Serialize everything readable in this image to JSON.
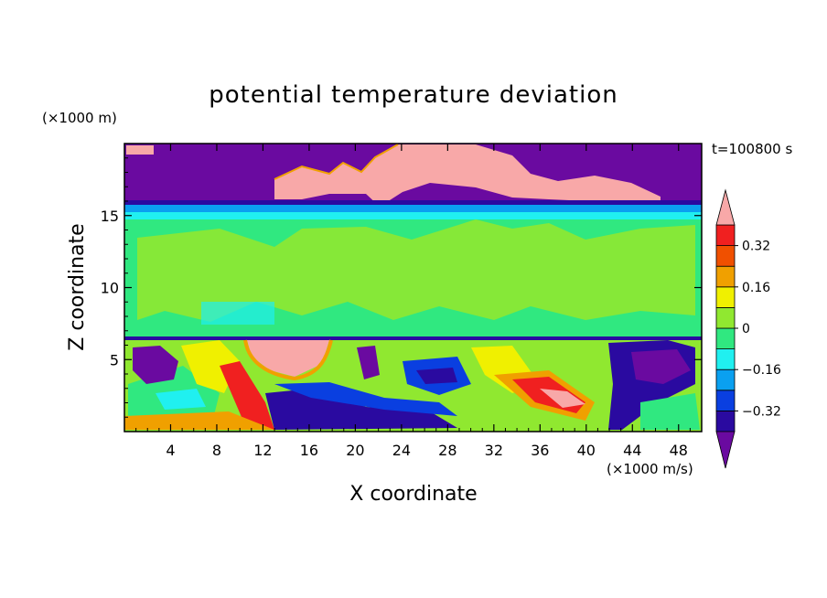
{
  "chart_data": {
    "type": "heatmap",
    "title": "potential temperature deviation",
    "xlabel": "X coordinate",
    "ylabel": "Z coordinate",
    "x_unit": "(×1000 m/s)",
    "y_unit": "(×1000 m)",
    "time_label": "t=100800 s",
    "xlim": [
      0,
      50
    ],
    "ylim": [
      0,
      20
    ],
    "x_ticks": [
      "4",
      "8",
      "12",
      "16",
      "20",
      "24",
      "28",
      "32",
      "36",
      "40",
      "44",
      "48"
    ],
    "y_ticks": [
      "5",
      "10",
      "15"
    ],
    "colorbar": {
      "tick_labels": [
        "0.32",
        "0.16",
        "0",
        "−0.16",
        "−0.32"
      ],
      "tick_values": [
        0.32,
        0.16,
        0,
        -0.16,
        -0.32
      ],
      "levels": [
        -0.4,
        -0.32,
        -0.24,
        -0.16,
        -0.08,
        0,
        0.08,
        0.16,
        0.24,
        0.32,
        0.4
      ],
      "colors": [
        "#6a0aa0",
        "#2a0aa0",
        "#0a3fe0",
        "#0aa0f0",
        "#20f0f0",
        "#30e880",
        "#90e830",
        "#f0f000",
        "#f0a000",
        "#f05000",
        "#f02020",
        "#f8a8a8"
      ]
    },
    "layers": [
      {
        "z_range": [
          16,
          20
        ],
        "dominant": "below -0.40",
        "note": "stratosphere with patches above 0.40 near 14–40"
      },
      {
        "z_range": [
          6.5,
          16
        ],
        "dominant": "-0.08 to 0.08"
      },
      {
        "z_range": [
          0,
          6.5
        ],
        "dominant": "mixed -0.40 to 0.40"
      }
    ],
    "grid": false,
    "legend": "right colorbar"
  },
  "colors": {
    "background": "#ffffff",
    "axis": "#000000"
  }
}
